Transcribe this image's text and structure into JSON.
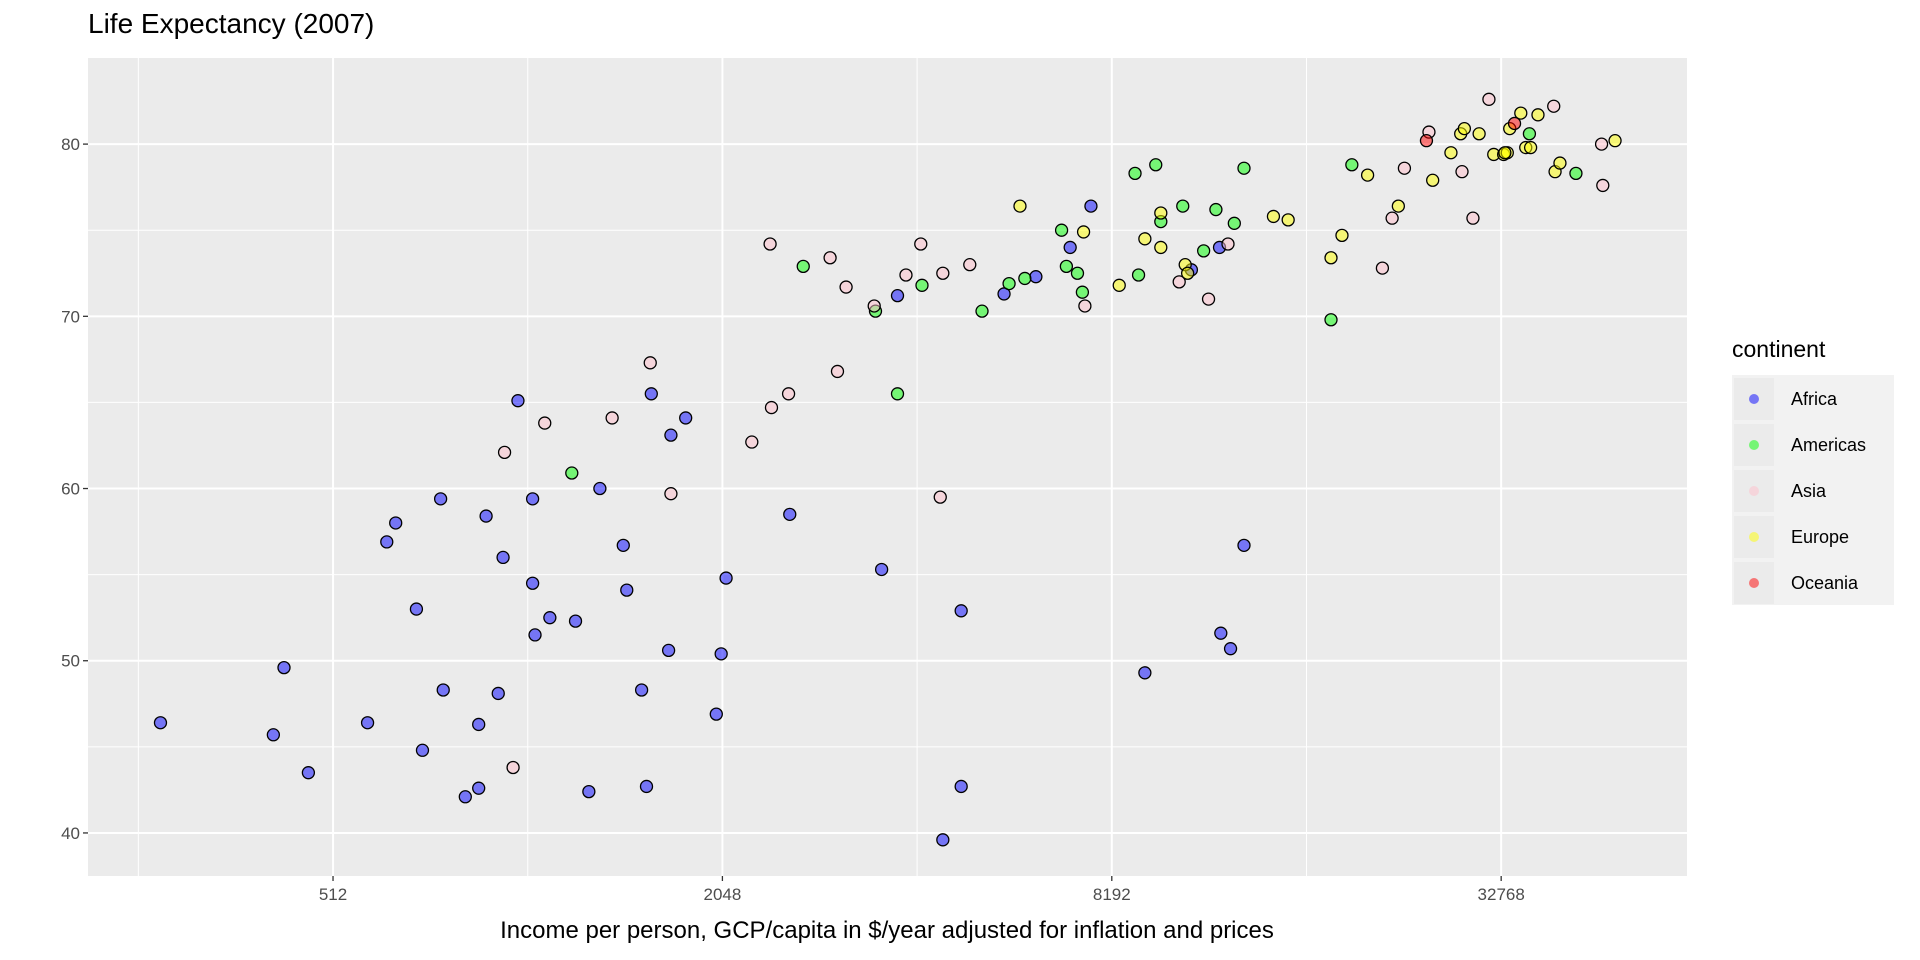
{
  "chart_data": {
    "type": "scatter",
    "title": "Life Expectancy (2007)",
    "xlabel": "Income per person, GCP/capita in $/year adjusted for inflation and prices",
    "ylabel": "",
    "x_scale": "log2",
    "xlim": [
      214,
      63500
    ],
    "ylim": [
      37.5,
      85
    ],
    "x_ticks": [
      512,
      2048,
      8192,
      32768
    ],
    "x_tick_labels": [
      "512",
      "2048",
      "8192",
      "32768"
    ],
    "y_ticks": [
      40,
      50,
      60,
      70,
      80
    ],
    "y_tick_labels": [
      "40",
      "50",
      "60",
      "70",
      "80"
    ],
    "grid": true,
    "legend": {
      "title": "continent",
      "placement": "right"
    },
    "series": [
      {
        "name": "Africa",
        "color": "#0000FF",
        "points": [
          [
            277,
            46.4
          ],
          [
            414,
            45.7
          ],
          [
            430,
            49.6
          ],
          [
            469,
            43.5
          ],
          [
            579,
            46.4
          ],
          [
            620,
            56.9
          ],
          [
            640,
            58.0
          ],
          [
            689,
            53.0
          ],
          [
            704,
            44.8
          ],
          [
            751,
            59.4
          ],
          [
            758,
            48.3
          ],
          [
            820,
            42.1
          ],
          [
            860,
            42.6
          ],
          [
            860,
            46.3
          ],
          [
            883,
            58.4
          ],
          [
            922,
            48.1
          ],
          [
            938,
            56.0
          ],
          [
            989,
            65.1
          ],
          [
            1042,
            54.5
          ],
          [
            1042,
            59.4
          ],
          [
            1051,
            51.5
          ],
          [
            1108,
            52.5
          ],
          [
            1214,
            52.3
          ],
          [
            1273,
            42.4
          ],
          [
            1324,
            60.0
          ],
          [
            1439,
            56.7
          ],
          [
            1457,
            54.1
          ],
          [
            1536,
            48.3
          ],
          [
            1563,
            42.7
          ],
          [
            1590,
            65.5
          ],
          [
            1691,
            50.6
          ],
          [
            1705,
            63.1
          ],
          [
            1797,
            64.1
          ],
          [
            2004,
            46.9
          ],
          [
            2039,
            50.4
          ],
          [
            2075,
            54.8
          ],
          [
            2603,
            58.5
          ],
          [
            3610,
            55.3
          ],
          [
            3820,
            71.2
          ],
          [
            4489,
            39.6
          ],
          [
            4792,
            52.9
          ],
          [
            4792,
            42.7
          ],
          [
            5582,
            71.3
          ],
          [
            6252,
            72.3
          ],
          [
            7064,
            74.0
          ],
          [
            7606,
            76.4
          ],
          [
            9216,
            49.3
          ],
          [
            10876,
            72.7
          ],
          [
            12021,
            74.0
          ],
          [
            12077,
            51.6
          ],
          [
            12503,
            50.7
          ],
          [
            13116,
            56.7
          ]
        ]
      },
      {
        "name": "Americas",
        "color": "#00FF00",
        "points": [
          [
            1198,
            60.9
          ],
          [
            2731,
            72.9
          ],
          [
            3532,
            70.3
          ],
          [
            3820,
            65.5
          ],
          [
            4168,
            71.8
          ],
          [
            5161,
            70.3
          ],
          [
            5683,
            71.9
          ],
          [
            6011,
            72.2
          ],
          [
            6851,
            75.0
          ],
          [
            6969,
            72.9
          ],
          [
            7250,
            72.5
          ],
          [
            7378,
            71.4
          ],
          [
            8899,
            78.3
          ],
          [
            9011,
            72.4
          ],
          [
            9580,
            78.8
          ],
          [
            9754,
            75.5
          ],
          [
            10547,
            76.4
          ],
          [
            11361,
            73.8
          ],
          [
            11868,
            76.2
          ],
          [
            12672,
            75.4
          ],
          [
            13116,
            78.6
          ],
          [
            17879,
            69.8
          ],
          [
            19256,
            78.8
          ],
          [
            36234,
            80.6
          ],
          [
            42762,
            78.3
          ]
        ]
      },
      {
        "name": "Asia",
        "color": "#FFC0CB",
        "points": [
          [
            943,
            62.1
          ],
          [
            972,
            43.8
          ],
          [
            1088,
            63.8
          ],
          [
            1383,
            64.1
          ],
          [
            1584,
            67.3
          ],
          [
            1705,
            59.7
          ],
          [
            2274,
            62.7
          ],
          [
            2427,
            74.2
          ],
          [
            2439,
            64.7
          ],
          [
            2592,
            65.5
          ],
          [
            3005,
            73.4
          ],
          [
            3085,
            66.8
          ],
          [
            3181,
            71.7
          ],
          [
            3516,
            70.6
          ],
          [
            3937,
            72.4
          ],
          [
            4150,
            74.2
          ],
          [
            4489,
            72.5
          ],
          [
            4448,
            59.5
          ],
          [
            4941,
            73.0
          ],
          [
            7444,
            70.6
          ],
          [
            10414,
            72.0
          ],
          [
            11561,
            71.0
          ],
          [
            12390,
            74.2
          ],
          [
            21469,
            72.8
          ],
          [
            22225,
            75.7
          ],
          [
            23219,
            78.6
          ],
          [
            25339,
            80.7
          ],
          [
            28503,
            78.4
          ],
          [
            29635,
            75.7
          ],
          [
            31370,
            82.6
          ],
          [
            39511,
            82.2
          ],
          [
            47053,
            77.6
          ],
          [
            46848,
            80.0
          ]
        ]
      },
      {
        "name": "Europe",
        "color": "#FFFF00",
        "points": [
          [
            5908,
            76.4
          ],
          [
            7409,
            74.9
          ],
          [
            8412,
            71.8
          ],
          [
            9216,
            74.5
          ],
          [
            9754,
            76.0
          ],
          [
            9754,
            74.0
          ],
          [
            10639,
            73.0
          ],
          [
            10732,
            72.5
          ],
          [
            14566,
            75.8
          ],
          [
            15350,
            75.6
          ],
          [
            17879,
            73.4
          ],
          [
            18591,
            74.7
          ],
          [
            20367,
            78.2
          ],
          [
            22723,
            76.4
          ],
          [
            25677,
            77.9
          ],
          [
            27402,
            79.5
          ],
          [
            28370,
            80.6
          ],
          [
            28743,
            80.9
          ],
          [
            30295,
            80.6
          ],
          [
            31913,
            79.4
          ],
          [
            33060,
            79.4
          ],
          [
            33490,
            79.5
          ],
          [
            33782,
            80.9
          ],
          [
            35139,
            81.8
          ],
          [
            35763,
            79.8
          ],
          [
            36388,
            79.8
          ],
          [
            37356,
            81.7
          ],
          [
            39700,
            78.4
          ],
          [
            40397,
            78.9
          ],
          [
            49152,
            80.2
          ],
          [
            33200,
            79.5
          ]
        ]
      },
      {
        "name": "Oceania",
        "color": "#FF0000",
        "points": [
          [
            25114,
            80.2
          ],
          [
            34365,
            81.2
          ]
        ]
      }
    ]
  }
}
